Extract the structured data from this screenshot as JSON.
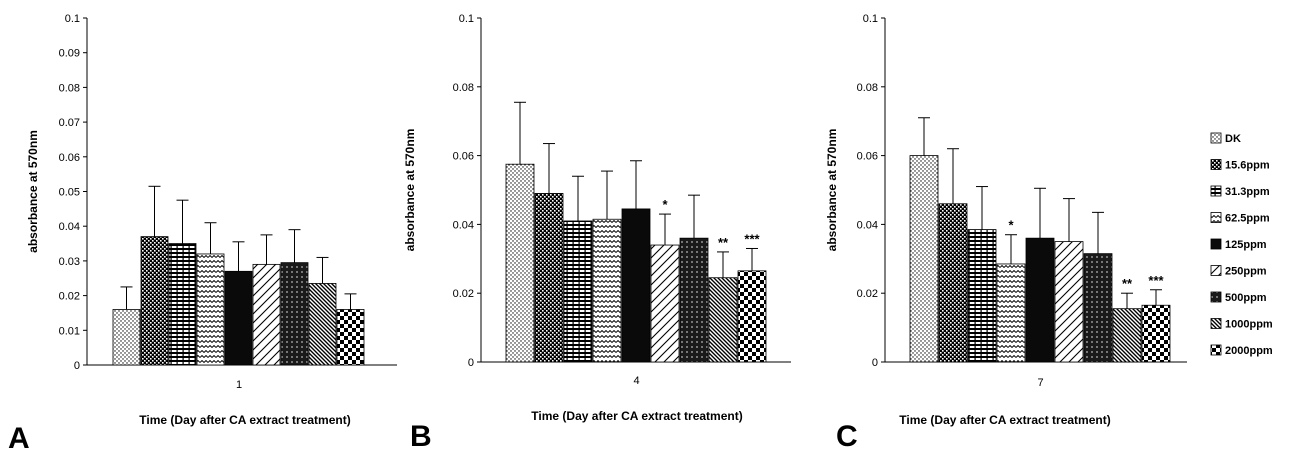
{
  "legend": [
    "DK",
    "15.6ppm",
    "31.3ppm",
    "62.5ppm",
    "125ppm",
    "250ppm",
    "500ppm",
    "1000ppm",
    "2000ppm"
  ],
  "pattern_ids": [
    "p-dots",
    "p-check",
    "p-hlines",
    "p-wave",
    "p-solid",
    "p-diag",
    "p-grid",
    "p-slash",
    "p-bigcheck"
  ],
  "chart_data": [
    {
      "type": "bar",
      "panel_label": "A",
      "categories": [
        "1"
      ],
      "ylabel": "absorbance at 570nm",
      "xlabel": "Time (Day after CA extract treatment)",
      "ylim": [
        0,
        0.1
      ],
      "yticks": [
        "0",
        "0.01",
        "0.02",
        "0.03",
        "0.04",
        "0.05",
        "0.06",
        "0.07",
        "0.08",
        "0.09",
        "0.1"
      ],
      "tick_values": [
        0,
        0.01,
        0.02,
        0.03,
        0.04,
        0.05,
        0.06,
        0.07,
        0.08,
        0.09,
        0.1
      ],
      "grid": false,
      "series": [
        {
          "name": "DK",
          "values": [
            0.016
          ],
          "error": [
            0.0065
          ],
          "sig": ""
        },
        {
          "name": "15.6ppm",
          "values": [
            0.037
          ],
          "error": [
            0.0145
          ],
          "sig": ""
        },
        {
          "name": "31.3ppm",
          "values": [
            0.035
          ],
          "error": [
            0.0125
          ],
          "sig": ""
        },
        {
          "name": "62.5ppm",
          "values": [
            0.032
          ],
          "error": [
            0.009
          ],
          "sig": ""
        },
        {
          "name": "125ppm",
          "values": [
            0.027
          ],
          "error": [
            0.0085
          ],
          "sig": ""
        },
        {
          "name": "250ppm",
          "values": [
            0.029
          ],
          "error": [
            0.0085
          ],
          "sig": ""
        },
        {
          "name": "500ppm",
          "values": [
            0.0295
          ],
          "error": [
            0.0095
          ],
          "sig": ""
        },
        {
          "name": "1000ppm",
          "values": [
            0.0235
          ],
          "error": [
            0.0075
          ],
          "sig": ""
        },
        {
          "name": "2000ppm",
          "values": [
            0.016
          ],
          "error": [
            0.0045
          ],
          "sig": ""
        }
      ]
    },
    {
      "type": "bar",
      "panel_label": "B",
      "categories": [
        "4"
      ],
      "ylabel": "absorbance at 570nm",
      "xlabel": "Time (Day after CA extract treatment)",
      "ylim": [
        0,
        0.1
      ],
      "yticks": [
        "0",
        "0.02",
        "0.04",
        "0.06",
        "0.08",
        "0.1"
      ],
      "tick_values": [
        0,
        0.02,
        0.04,
        0.06,
        0.08,
        0.1
      ],
      "grid": false,
      "series": [
        {
          "name": "DK",
          "values": [
            0.0575
          ],
          "error": [
            0.018
          ],
          "sig": ""
        },
        {
          "name": "15.6ppm",
          "values": [
            0.049
          ],
          "error": [
            0.0145
          ],
          "sig": ""
        },
        {
          "name": "31.3ppm",
          "values": [
            0.041
          ],
          "error": [
            0.013
          ],
          "sig": ""
        },
        {
          "name": "62.5ppm",
          "values": [
            0.0415
          ],
          "error": [
            0.014
          ],
          "sig": ""
        },
        {
          "name": "125ppm",
          "values": [
            0.0445
          ],
          "error": [
            0.014
          ],
          "sig": ""
        },
        {
          "name": "250ppm",
          "values": [
            0.034
          ],
          "error": [
            0.009
          ],
          "sig": "*"
        },
        {
          "name": "500ppm",
          "values": [
            0.036
          ],
          "error": [
            0.0125
          ],
          "sig": ""
        },
        {
          "name": "1000ppm",
          "values": [
            0.0245
          ],
          "error": [
            0.0075
          ],
          "sig": "**"
        },
        {
          "name": "2000ppm",
          "values": [
            0.0265
          ],
          "error": [
            0.0065
          ],
          "sig": "***"
        }
      ]
    },
    {
      "type": "bar",
      "panel_label": "C",
      "categories": [
        "7"
      ],
      "ylabel": "absorbance at 570nm",
      "xlabel": "Time (Day after CA extract treatment)",
      "ylim": [
        0,
        0.1
      ],
      "yticks": [
        "0",
        "0.02",
        "0.04",
        "0.06",
        "0.08",
        "0.1"
      ],
      "tick_values": [
        0,
        0.02,
        0.04,
        0.06,
        0.08,
        0.1
      ],
      "grid": false,
      "series": [
        {
          "name": "DK",
          "values": [
            0.06
          ],
          "error": [
            0.011
          ],
          "sig": ""
        },
        {
          "name": "15.6ppm",
          "values": [
            0.046
          ],
          "error": [
            0.016
          ],
          "sig": ""
        },
        {
          "name": "31.3ppm",
          "values": [
            0.0385
          ],
          "error": [
            0.0125
          ],
          "sig": ""
        },
        {
          "name": "62.5ppm",
          "values": [
            0.0285
          ],
          "error": [
            0.0085
          ],
          "sig": "*"
        },
        {
          "name": "125ppm",
          "values": [
            0.036
          ],
          "error": [
            0.0145
          ],
          "sig": ""
        },
        {
          "name": "250ppm",
          "values": [
            0.035
          ],
          "error": [
            0.0125
          ],
          "sig": ""
        },
        {
          "name": "500ppm",
          "values": [
            0.0315
          ],
          "error": [
            0.012
          ],
          "sig": ""
        },
        {
          "name": "1000ppm",
          "values": [
            0.0155
          ],
          "error": [
            0.0045
          ],
          "sig": "**"
        },
        {
          "name": "2000ppm",
          "values": [
            0.0165
          ],
          "error": [
            0.0045
          ],
          "sig": "***"
        }
      ]
    }
  ]
}
